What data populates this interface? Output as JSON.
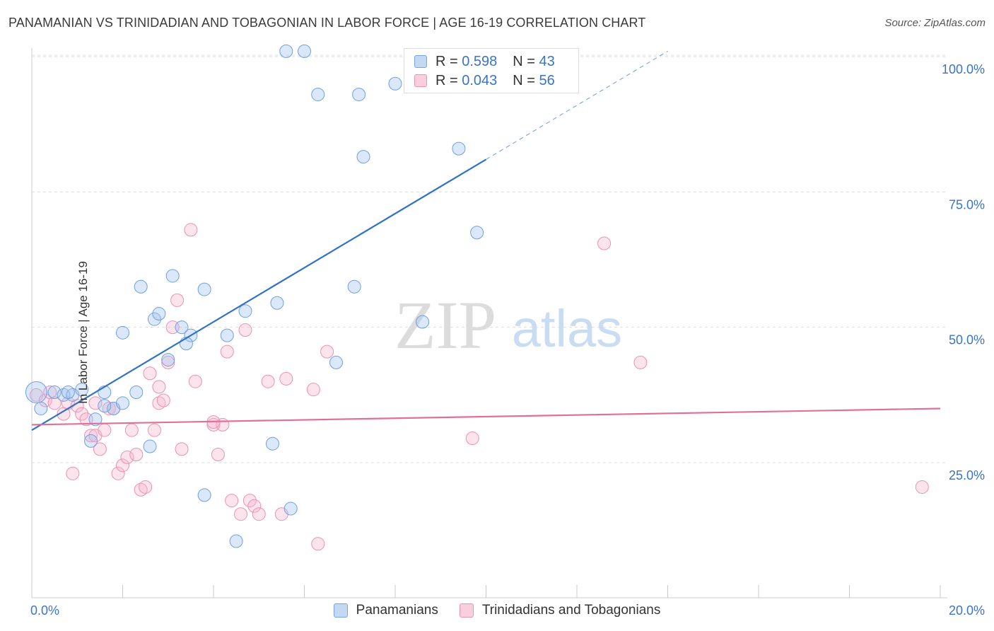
{
  "title": "PANAMANIAN VS TRINIDADIAN AND TOBAGONIAN IN LABOR FORCE | AGE 16-19 CORRELATION CHART",
  "source": "Source: ZipAtlas.com",
  "watermark": {
    "zip": "ZIP",
    "atlas": "atlas"
  },
  "legend_top": [
    {
      "r_label": "R =",
      "r_value": "0.598",
      "n_label": "N =",
      "n_value": "43"
    },
    {
      "r_label": "R =",
      "r_value": "0.043",
      "n_label": "N =",
      "n_value": "56"
    }
  ],
  "chart_data": {
    "type": "scatter",
    "title": "PANAMANIAN VS TRINIDADIAN AND TOBAGONIAN IN LABOR FORCE | AGE 16-19 CORRELATION CHART",
    "xlabel": "",
    "ylabel": "In Labor Force | Age 16-19",
    "xlim": [
      0,
      20
    ],
    "ylim": [
      0,
      105
    ],
    "x_tick_labels": [
      "0.0%",
      "20.0%"
    ],
    "y_ticks": [
      25,
      50,
      75,
      100
    ],
    "y_tick_labels": [
      "25.0%",
      "50.0%",
      "75.0%",
      "100.0%"
    ],
    "grid": true,
    "legend_position": "bottom",
    "colors": {
      "panamanians": "#6f9fe0",
      "trinidadians": "#f08cae",
      "blue_line": "#2f72c8",
      "pink_line": "#e0709a",
      "tick_text": "#3a74c4"
    },
    "series": [
      {
        "name": "Panamanians",
        "r": 0.598,
        "n": 43,
        "trend": {
          "x": [
            0,
            10
          ],
          "y": [
            31,
            81
          ]
        },
        "trend_dashed": {
          "x": [
            10,
            14
          ],
          "y": [
            81,
            101
          ]
        },
        "points": [
          [
            0.1,
            38
          ],
          [
            0.2,
            35
          ],
          [
            0.5,
            38
          ],
          [
            0.7,
            37.5
          ],
          [
            0.9,
            37.5
          ],
          [
            0.8,
            38
          ],
          [
            1.1,
            38.5
          ],
          [
            1.4,
            33
          ],
          [
            1.6,
            38
          ],
          [
            1.8,
            35
          ],
          [
            1.3,
            29
          ],
          [
            1.6,
            35.5
          ],
          [
            2.0,
            36
          ],
          [
            2.3,
            38
          ],
          [
            2.6,
            28
          ],
          [
            2.0,
            49
          ],
          [
            2.4,
            57.5
          ],
          [
            2.7,
            51.5
          ],
          [
            2.8,
            52.5
          ],
          [
            3.1,
            59.5
          ],
          [
            3.3,
            50
          ],
          [
            3.5,
            48.5
          ],
          [
            3.4,
            47
          ],
          [
            3.0,
            44
          ],
          [
            3.8,
            57
          ],
          [
            4.3,
            48.5
          ],
          [
            4.7,
            53
          ],
          [
            5.4,
            54.5
          ],
          [
            5.3,
            28.5
          ],
          [
            3.8,
            19
          ],
          [
            4.5,
            10.5
          ],
          [
            5.7,
            16.5
          ],
          [
            6.7,
            43.5
          ],
          [
            7.1,
            57.5
          ],
          [
            8.6,
            51
          ],
          [
            9.4,
            83
          ],
          [
            9.8,
            67.5
          ],
          [
            7.3,
            81.5
          ],
          [
            7.2,
            93
          ],
          [
            6.3,
            93
          ],
          [
            5.6,
            101
          ],
          [
            6.0,
            101
          ],
          [
            8.0,
            95
          ]
        ]
      },
      {
        "name": "Trinidadians and Tobagonians",
        "r": 0.043,
        "n": 56,
        "trend": {
          "x": [
            0,
            20
          ],
          "y": [
            32,
            35
          ]
        },
        "points": [
          [
            0.1,
            37.5
          ],
          [
            0.3,
            36.5
          ],
          [
            0.5,
            36
          ],
          [
            0.7,
            34
          ],
          [
            0.8,
            36
          ],
          [
            1.0,
            35.5
          ],
          [
            1.1,
            34
          ],
          [
            1.2,
            33
          ],
          [
            1.3,
            30
          ],
          [
            1.4,
            30
          ],
          [
            1.5,
            27.5
          ],
          [
            1.7,
            35
          ],
          [
            1.8,
            35
          ],
          [
            1.9,
            23
          ],
          [
            2.0,
            24.5
          ],
          [
            2.1,
            26
          ],
          [
            2.2,
            31
          ],
          [
            2.3,
            26.5
          ],
          [
            2.4,
            20
          ],
          [
            2.5,
            20.5
          ],
          [
            2.6,
            41.5
          ],
          [
            2.7,
            31
          ],
          [
            2.8,
            36
          ],
          [
            2.9,
            36.5
          ],
          [
            3.0,
            43.5
          ],
          [
            3.1,
            50
          ],
          [
            3.2,
            55
          ],
          [
            3.3,
            27.5
          ],
          [
            3.6,
            40
          ],
          [
            3.5,
            68
          ],
          [
            4.0,
            32
          ],
          [
            4.1,
            26.5
          ],
          [
            4.2,
            32
          ],
          [
            4.3,
            45.5
          ],
          [
            4.4,
            18
          ],
          [
            4.6,
            15.5
          ],
          [
            4.7,
            49.5
          ],
          [
            4.8,
            18
          ],
          [
            4.9,
            17
          ],
          [
            5.0,
            15.5
          ],
          [
            5.2,
            40
          ],
          [
            5.5,
            15.5
          ],
          [
            5.6,
            40.5
          ],
          [
            6.2,
            38.5
          ],
          [
            6.3,
            10
          ],
          [
            6.5,
            45.5
          ],
          [
            9.7,
            29.5
          ],
          [
            12.6,
            65.5
          ],
          [
            13.4,
            43.5
          ],
          [
            19.6,
            20.5
          ],
          [
            0.9,
            23
          ],
          [
            1.6,
            31
          ],
          [
            2.8,
            39
          ],
          [
            4.0,
            32.5
          ],
          [
            1.4,
            36
          ],
          [
            0.4,
            38
          ]
        ]
      }
    ]
  },
  "legend_bottom": [
    "Panamanians",
    "Trinidadians and Tobagonians"
  ]
}
